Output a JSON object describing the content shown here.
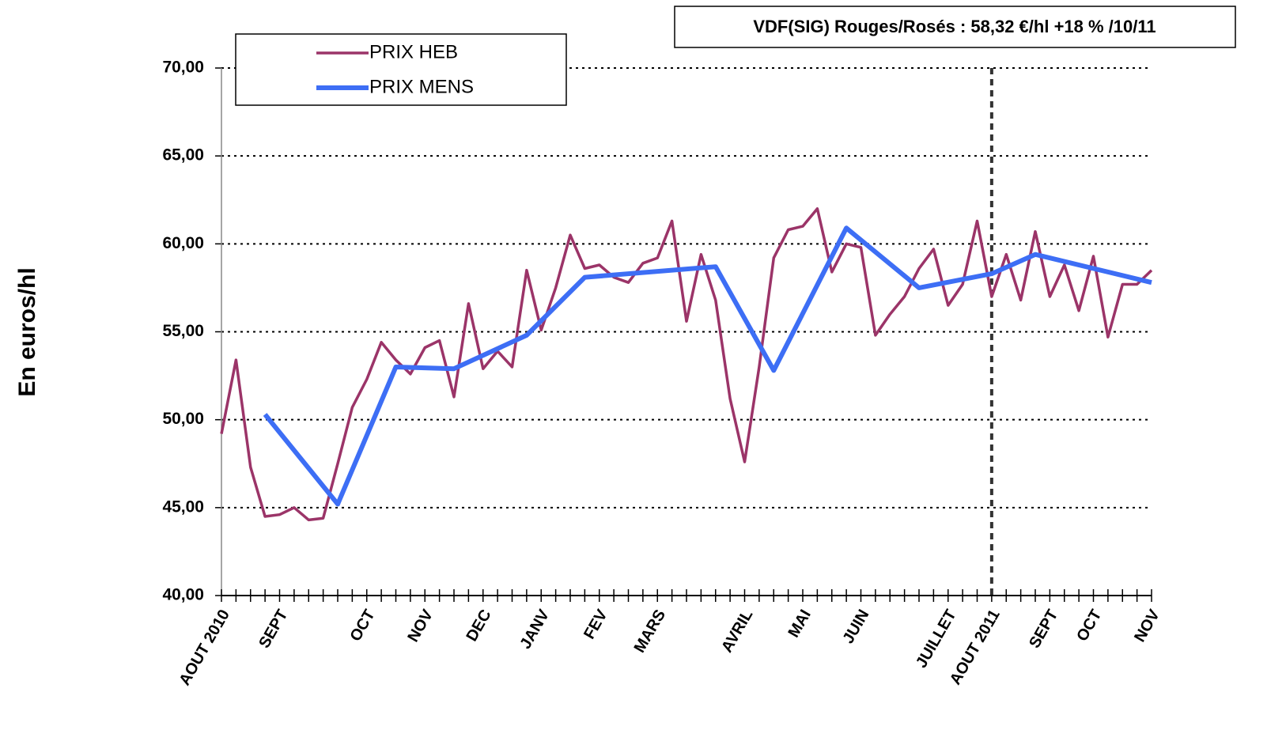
{
  "chart_data": {
    "type": "line",
    "annotation": "VDF(SIG) Rouges/Rosés : 58,32 €/hl +18 % /10/11",
    "y_label": "En euros/hl",
    "categories": [
      "AOUT 2010",
      null,
      null,
      null,
      "SEPT",
      null,
      null,
      null,
      null,
      null,
      "OCT",
      null,
      null,
      null,
      "NOV",
      null,
      null,
      null,
      "DEC",
      null,
      null,
      null,
      "JANV",
      null,
      null,
      null,
      "FEV",
      null,
      null,
      null,
      "MARS",
      null,
      null,
      null,
      null,
      null,
      "AVRIL",
      null,
      null,
      null,
      "MAI",
      null,
      null,
      null,
      "JUIN",
      null,
      null,
      null,
      null,
      null,
      "JUILLET",
      null,
      null,
      "AOUT 2011",
      null,
      null,
      null,
      "SEPT",
      null,
      null,
      "OCT",
      null,
      null,
      null,
      "NOV"
    ],
    "series": [
      {
        "name": "PRIX HEB",
        "color": "#9b3468",
        "values": [
          49.2,
          53.4,
          47.3,
          44.5,
          44.6,
          45.0,
          44.3,
          44.4,
          47.5,
          50.7,
          52.3,
          54.4,
          53.4,
          52.6,
          54.1,
          54.5,
          51.3,
          56.6,
          52.9,
          53.9,
          53.0,
          58.5,
          55.1,
          57.5,
          60.5,
          58.6,
          58.8,
          58.1,
          57.8,
          58.9,
          59.2,
          61.3,
          55.6,
          59.4,
          56.8,
          51.2,
          47.6,
          53.0,
          59.2,
          60.8,
          61.0,
          62.0,
          58.4,
          60.0,
          59.8,
          54.8,
          56.0,
          57.0,
          58.6,
          59.7,
          56.5,
          57.7,
          61.3,
          57.0,
          59.4,
          56.8,
          60.7,
          57.0,
          58.8,
          56.2,
          59.3,
          54.7,
          57.7,
          57.7,
          58.5
        ]
      },
      {
        "name": "PRIX MENS",
        "color": "#3d6ef5",
        "x": [
          3,
          8,
          12,
          16,
          21,
          25,
          34,
          38,
          43,
          48,
          53,
          56,
          64
        ],
        "values": [
          50.3,
          45.2,
          53.0,
          52.9,
          54.8,
          58.1,
          58.7,
          52.8,
          60.9,
          57.5,
          58.3,
          59.4,
          57.8
        ]
      }
    ],
    "vline_category": "AOUT 2011",
    "ylim": [
      40,
      70
    ],
    "yticks": [
      {
        "value": 40,
        "label": "40,00"
      },
      {
        "value": 45,
        "label": "45,00"
      },
      {
        "value": 50,
        "label": "50,00"
      },
      {
        "value": 55,
        "label": "55,00"
      },
      {
        "value": 60,
        "label": "60,00"
      },
      {
        "value": 65,
        "label": "65,00"
      },
      {
        "value": 70,
        "label": "70,00"
      }
    ],
    "grid": true
  }
}
